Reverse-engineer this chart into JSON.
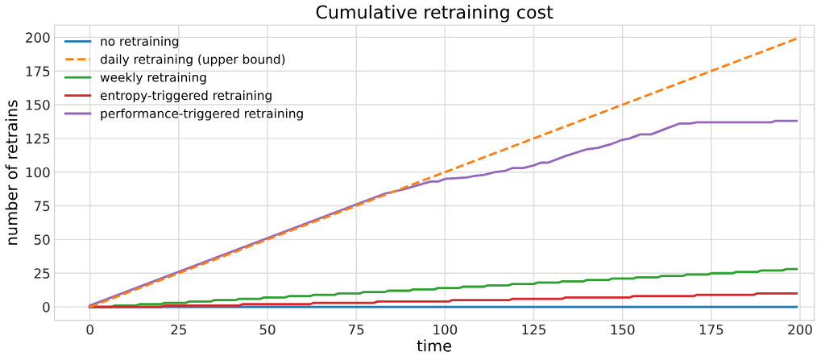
{
  "chart_data": {
    "type": "line",
    "title": "Cumulative retraining cost",
    "xlabel": "time",
    "ylabel": "number of retrains",
    "xlim": [
      -10,
      204
    ],
    "ylim": [
      -10,
      209
    ],
    "xticks": [
      0,
      25,
      50,
      75,
      100,
      125,
      150,
      175,
      200
    ],
    "yticks": [
      0,
      25,
      50,
      75,
      100,
      125,
      150,
      175,
      200
    ],
    "grid": true,
    "legend": "top left",
    "marker": "none",
    "series": [
      {
        "name": "no retraining",
        "color": "#1f77b4",
        "line_style": "solid",
        "x": [
          0,
          199
        ],
        "values": [
          0,
          0
        ]
      },
      {
        "name": "daily retraining (upper bound)",
        "color": "#ff7f0e",
        "line_style": "dashed",
        "x": [
          0,
          199
        ],
        "values": [
          0,
          199
        ]
      },
      {
        "name": "weekly retraining",
        "color": "#2ca02c",
        "line_style": "solid",
        "x": [
          0,
          6,
          7,
          13,
          14,
          20,
          21,
          27,
          28,
          34,
          35,
          41,
          42,
          48,
          49,
          55,
          56,
          62,
          63,
          69,
          70,
          76,
          77,
          83,
          84,
          90,
          91,
          97,
          98,
          104,
          105,
          111,
          112,
          118,
          119,
          125,
          126,
          132,
          133,
          139,
          140,
          146,
          147,
          153,
          154,
          160,
          161,
          167,
          168,
          174,
          175,
          181,
          182,
          188,
          189,
          195,
          196,
          199
        ],
        "values": [
          0,
          0,
          1,
          1,
          2,
          2,
          3,
          3,
          4,
          4,
          5,
          5,
          6,
          6,
          7,
          7,
          8,
          8,
          9,
          9,
          10,
          10,
          11,
          11,
          12,
          12,
          13,
          13,
          14,
          14,
          15,
          15,
          16,
          16,
          17,
          17,
          18,
          18,
          19,
          19,
          20,
          20,
          21,
          21,
          22,
          22,
          23,
          23,
          24,
          24,
          25,
          25,
          26,
          26,
          27,
          27,
          28,
          28
        ]
      },
      {
        "name": "entropy-triggered retraining",
        "color": "#d62728",
        "line_style": "solid",
        "x": [
          0,
          20,
          21,
          42,
          43,
          62,
          63,
          80,
          81,
          101,
          102,
          118,
          119,
          133,
          134,
          152,
          153,
          170,
          171,
          187,
          188,
          199
        ],
        "values": [
          0,
          0,
          1,
          1,
          2,
          2,
          3,
          3,
          4,
          4,
          5,
          5,
          6,
          6,
          7,
          7,
          8,
          8,
          9,
          9,
          10,
          10
        ]
      },
      {
        "name": "performance-triggered retraining",
        "color": "#9467bd",
        "line_style": "solid",
        "x": [
          0,
          83,
          88,
          92,
          96,
          98,
          100,
          106,
          108,
          111,
          114,
          117,
          119,
          122,
          125,
          127,
          129,
          134,
          140,
          143,
          147,
          150,
          152,
          155,
          158,
          161,
          162,
          166,
          169,
          171,
          192,
          193,
          199
        ],
        "values": [
          1,
          84,
          87,
          90,
          93,
          93,
          95,
          96,
          97,
          98,
          100,
          101,
          103,
          103,
          105,
          107,
          107,
          112,
          117,
          118,
          121,
          124,
          125,
          128,
          128,
          131,
          132,
          136,
          136,
          137,
          137,
          138,
          138
        ]
      }
    ]
  }
}
